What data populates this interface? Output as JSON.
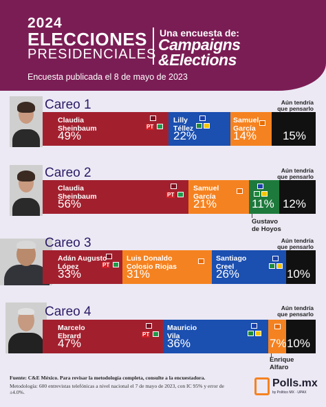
{
  "header": {
    "year": "2024",
    "title_line1": "ELECCIONES",
    "title_line2": "PRESIDENCIALES",
    "survey_by": "Una encuesta de:",
    "brand_line1": "Campaigns",
    "brand_line2": "&Elections",
    "published": "Encuesta publicada el 8 de mayo de 2023"
  },
  "colors": {
    "header": "#7b1d55",
    "background": "#ece9f4",
    "morena": "#a2202e",
    "pan_alliance": "#1b4fb0",
    "mc": "#f58220",
    "pvem": "#1e7a3c",
    "undecided": "#111111",
    "title_text": "#2b1a66"
  },
  "chart_data": [
    {
      "type": "bar",
      "title": "Careo 1",
      "stacked": true,
      "series": [
        {
          "name": "Claudia Sheinbaum",
          "value": 49,
          "label": "49%",
          "color": "#a2202e",
          "party_logos": [
            "morena",
            "PT",
            "pvem"
          ]
        },
        {
          "name": "Lilly Téllez",
          "value": 22,
          "label": "22%",
          "color": "#1b4fb0",
          "party_logos": [
            "pan",
            "pri",
            "prd"
          ]
        },
        {
          "name": "Samuel García",
          "value": 14,
          "label": "14%",
          "color": "#f58220",
          "party_logos": [
            "mc"
          ]
        },
        {
          "name": "Aún tendría que pensarlo",
          "value": 15,
          "label": "15%",
          "color": "#111111"
        }
      ]
    },
    {
      "type": "bar",
      "title": "Careo 2",
      "stacked": true,
      "series": [
        {
          "name": "Claudia Sheinbaum",
          "value": 56,
          "label": "56%",
          "color": "#a2202e",
          "party_logos": [
            "morena",
            "PT",
            "pvem"
          ]
        },
        {
          "name": "Samuel García",
          "value": 21,
          "label": "21%",
          "color": "#f58220",
          "party_logos": [
            "mc"
          ]
        },
        {
          "name": "Gustavo de Hoyos",
          "value": 11,
          "label": "11%",
          "color": "#1e7a3c",
          "party_logos": [
            "pan",
            "pri",
            "prd"
          ]
        },
        {
          "name": "Aún tendría que pensarlo",
          "value": 12,
          "label": "12%",
          "color": "#111111"
        }
      ]
    },
    {
      "type": "bar",
      "title": "Careo 3",
      "stacked": true,
      "series": [
        {
          "name": "Adán Augusto López",
          "value": 33,
          "label": "33%",
          "color": "#a2202e",
          "party_logos": [
            "morena",
            "PT",
            "pvem"
          ]
        },
        {
          "name": "Luis Donaldo Colosio Riojas",
          "value": 31,
          "label": "31%",
          "color": "#f58220",
          "party_logos": [
            "mc"
          ]
        },
        {
          "name": "Santiago Creel",
          "value": 26,
          "label": "26%",
          "color": "#1b4fb0",
          "party_logos": [
            "pan",
            "pri",
            "prd"
          ]
        },
        {
          "name": "Aún tendría que pensarlo",
          "value": 10,
          "label": "10%",
          "color": "#111111"
        }
      ]
    },
    {
      "type": "bar",
      "title": "Careo 4",
      "stacked": true,
      "series": [
        {
          "name": "Marcelo Ebrard",
          "value": 47,
          "label": "47%",
          "color": "#a2202e",
          "party_logos": [
            "morena",
            "PT",
            "pvem"
          ]
        },
        {
          "name": "Mauricio Vila",
          "value": 36,
          "label": "36%",
          "color": "#1b4fb0",
          "party_logos": [
            "pan",
            "pri",
            "prd"
          ]
        },
        {
          "name": "Enrique Alfaro",
          "value": 7,
          "label": "7%",
          "color": "#f58220",
          "party_logos": [
            "mc"
          ]
        },
        {
          "name": "Aún tendría que pensarlo",
          "value": 10,
          "label": "10%",
          "color": "#111111"
        }
      ]
    }
  ],
  "labels": {
    "c1_s1_l1": "Claudia",
    "c1_s1_l2": "Sheinbaum",
    "c1_s2_l1": "Lilly",
    "c1_s2_l2": "Téllez",
    "c1_s3_l1": "Samuel",
    "c1_s3_l2": "García",
    "c2_s1_l1": "Claudia",
    "c2_s1_l2": "Sheinbaum",
    "c2_s2_l1": "Samuel",
    "c2_s2_l2": "García",
    "c2_s3_l1": "Gustavo",
    "c2_s3_l2": "de Hoyos",
    "c3_s1_l1": "Adán Augusto",
    "c3_s1_l2": "López",
    "c3_s2_l1": "Luis Donaldo",
    "c3_s2_l2": "Colosio Riojas",
    "c3_s3_l1": "Santiago",
    "c3_s3_l2": "Creel",
    "c4_s1_l1": "Marcelo",
    "c4_s1_l2": "Ebrard",
    "c4_s2_l1": "Mauricio",
    "c4_s2_l2": "Vila",
    "c4_s3_l1": "Enrique",
    "c4_s3_l2": "Alfaro",
    "undec_l1": "Aún tendría",
    "undec_l2": "que pensarlo",
    "pt": "PT"
  },
  "footer": {
    "source": "Fuente: C&E México. Para revisar la metodología completa, consulte a la encuestadora.",
    "methodology": "Metodología: 600 entrevistas telefónicas a nivel nacional el 7 de mayo de 2023, con IC 95% y error de ±4.0%.",
    "brand": "Polls.mx",
    "brand_sub": "by Político MX · UPAX"
  }
}
